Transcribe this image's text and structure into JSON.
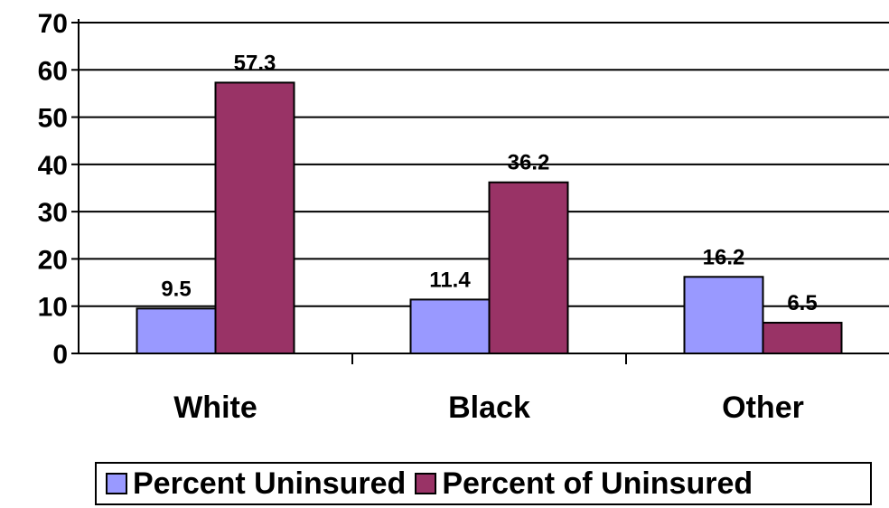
{
  "chart_data": {
    "type": "bar",
    "categories": [
      "White",
      "Black",
      "Other"
    ],
    "series": [
      {
        "name": "Percent Uninsured",
        "values": [
          9.5,
          11.4,
          16.2
        ],
        "color": "#9999ff"
      },
      {
        "name": "Percent of Uninsured",
        "values": [
          57.3,
          36.2,
          6.5
        ],
        "color": "#993366"
      }
    ],
    "data_labels": [
      [
        "9.5",
        "11.4",
        "16.2"
      ],
      [
        "57.3",
        "36.2",
        "6.5"
      ]
    ],
    "ylim": [
      0,
      70
    ],
    "yticks": [
      "0",
      "10",
      "20",
      "30",
      "40",
      "50",
      "60",
      "70"
    ],
    "grid": true,
    "legend_position": "bottom",
    "title": "",
    "xlabel": "",
    "ylabel": ""
  }
}
